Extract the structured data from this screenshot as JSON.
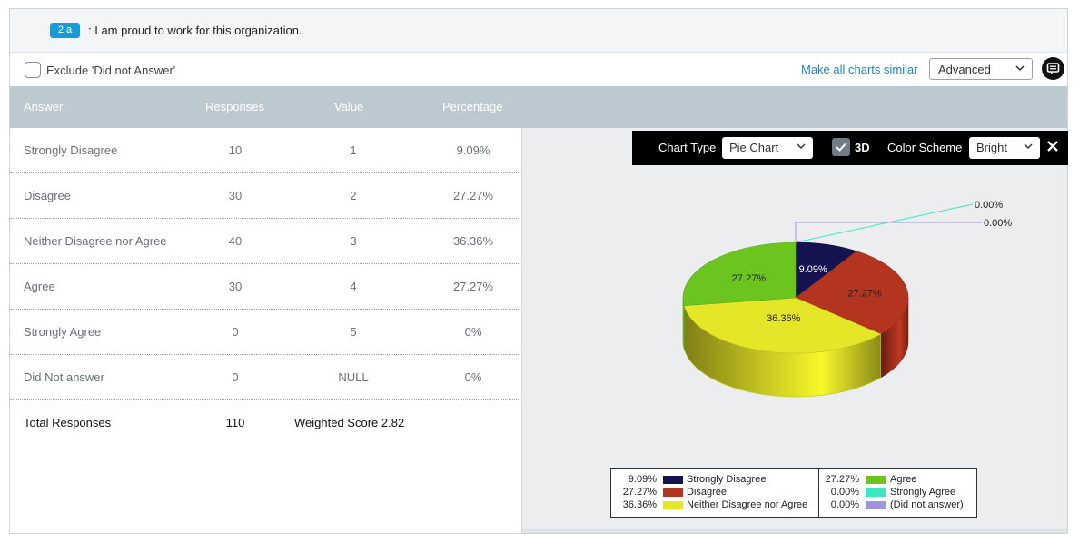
{
  "question": {
    "tag": "2 a",
    "text": ": I am proud to work for this organization."
  },
  "toolbar": {
    "exclude_label": "Exclude 'Did not Answer'",
    "make_similar_label": "Make all charts similar",
    "display_mode": "Advanced"
  },
  "table": {
    "headers": {
      "answer": "Answer",
      "responses": "Responses",
      "value": "Value",
      "percentage": "Percentage"
    },
    "rows": [
      {
        "answer": "Strongly Disagree",
        "responses": "10",
        "value": "1",
        "percentage": "9.09%"
      },
      {
        "answer": "Disagree",
        "responses": "30",
        "value": "2",
        "percentage": "27.27%"
      },
      {
        "answer": "Neither Disagree nor Agree",
        "responses": "40",
        "value": "3",
        "percentage": "36.36%"
      },
      {
        "answer": "Agree",
        "responses": "30",
        "value": "4",
        "percentage": "27.27%"
      },
      {
        "answer": "Strongly Agree",
        "responses": "0",
        "value": "5",
        "percentage": "0%"
      },
      {
        "answer": "Did Not answer",
        "responses": "0",
        "value": "NULL",
        "percentage": "0%"
      }
    ],
    "total": {
      "label": "Total Responses",
      "count": "110",
      "weighted_score": "Weighted Score 2.82"
    }
  },
  "chart_controls": {
    "chart_type_label": "Chart Type",
    "chart_type": "Pie Chart",
    "three_d_label": "3D",
    "three_d_checked": true,
    "color_scheme_label": "Color Scheme",
    "color_scheme": "Bright"
  },
  "chart_data": {
    "type": "pie",
    "three_d": true,
    "slices": [
      {
        "label": "Strongly Disagree",
        "value": 9.09,
        "display": "9.09%",
        "color": "#14124f"
      },
      {
        "label": "Disagree",
        "value": 27.27,
        "display": "27.27%",
        "color": "#b4351f"
      },
      {
        "label": "Neither Disagree nor Agree",
        "value": 36.36,
        "display": "36.36%",
        "color": "#e6e628"
      },
      {
        "label": "Agree",
        "value": 27.27,
        "display": "27.27%",
        "color": "#6cc51f"
      },
      {
        "label": "Strongly Agree",
        "value": 0,
        "display": "0.00%",
        "color": "#3ee6c4"
      },
      {
        "label": "(Did not answer)",
        "value": 0,
        "display": "0.00%",
        "color": "#9c97db"
      }
    ],
    "legend": [
      {
        "pct": "9.09%",
        "label": "Strongly Disagree",
        "color": "#14124f"
      },
      {
        "pct": "27.27%",
        "label": "Disagree",
        "color": "#b4351f"
      },
      {
        "pct": "36.36%",
        "label": "Neither Disagree nor Agree",
        "color": "#e6e628"
      },
      {
        "pct": "27.27%",
        "label": "Agree",
        "color": "#6cc51f"
      },
      {
        "pct": "0.00%",
        "label": "Strongly Agree",
        "color": "#3ee6c4"
      },
      {
        "pct": "0.00%",
        "label": "(Did not answer)",
        "color": "#9c97db"
      }
    ]
  }
}
